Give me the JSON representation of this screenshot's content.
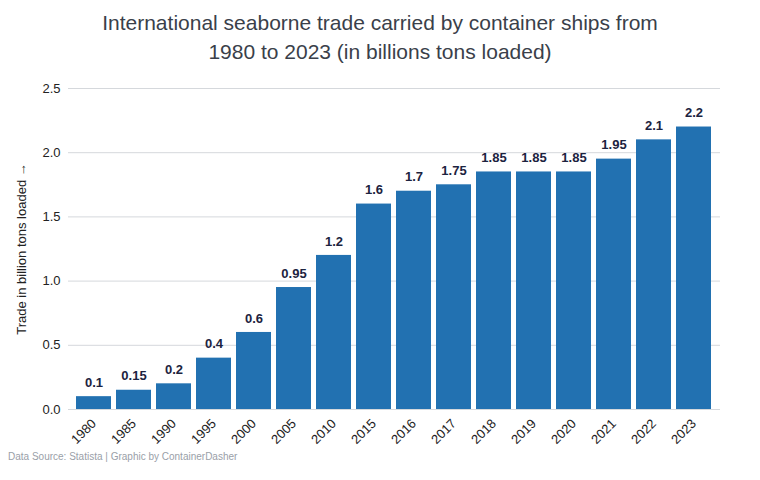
{
  "chart_data": {
    "type": "bar",
    "title": "International seaborne trade carried by container ships from 1980 to 2023 (in billions tons loaded)",
    "y_label": "Trade in billion tons loaded",
    "caption": "Data Source: Statista | Graphic by ContainerDasher",
    "categories": [
      "1980",
      "1985",
      "1990",
      "1995",
      "2000",
      "2005",
      "2010",
      "2015",
      "2016",
      "2017",
      "2018",
      "2019",
      "2020",
      "2021",
      "2022",
      "2023"
    ],
    "values": [
      0.1,
      0.15,
      0.2,
      0.4,
      0.6,
      0.95,
      1.2,
      1.6,
      1.7,
      1.75,
      1.85,
      1.85,
      1.85,
      1.95,
      2.1,
      2.2
    ],
    "color": "#2271b1",
    "ylim": [
      0,
      2.5
    ],
    "yticks": [
      {
        "value": 0,
        "label": "0.0"
      },
      0.5,
      {
        "value": 1,
        "label": "1.0"
      },
      1.5,
      {
        "value": 2,
        "label": "2.0"
      },
      2.5
    ],
    "grid": true,
    "data_labels": true
  }
}
